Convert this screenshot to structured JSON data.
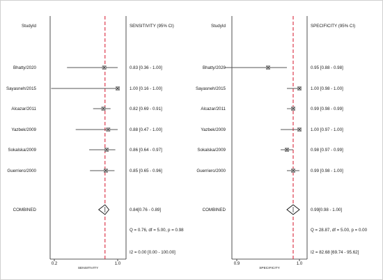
{
  "chart_data": [
    {
      "type": "forest",
      "study_header": "StudyId",
      "stat_header": "SENSITIVITY (95% CI)",
      "xlabel": "SENSITIVITY",
      "xlim": [
        0.2,
        1.0
      ],
      "xticks": [
        "0.2",
        "1.0"
      ],
      "studies": [
        {
          "name": "Bhatty/2020",
          "est": 0.83,
          "lo": 0.36,
          "hi": 1.0,
          "label": "0.83 [0.36 - 1.00]"
        },
        {
          "name": "Sayasneh/2015",
          "est": 1.0,
          "lo": 0.16,
          "hi": 1.0,
          "label": "1.00 [0.16 - 1.00]"
        },
        {
          "name": "Alcazar/2011",
          "est": 0.82,
          "lo": 0.69,
          "hi": 0.91,
          "label": "0.82 [0.69 - 0.91]"
        },
        {
          "name": "Yazbek/2009",
          "est": 0.88,
          "lo": 0.47,
          "hi": 1.0,
          "label": "0.88 [0.47 - 1.00]"
        },
        {
          "name": "Sokalska/2009",
          "est": 0.86,
          "lo": 0.64,
          "hi": 0.97,
          "label": "0.86 [0.64 - 0.97]"
        },
        {
          "name": "Guerriero/2000",
          "est": 0.85,
          "lo": 0.65,
          "hi": 0.96,
          "label": "0.85 [0.65 - 0.96]"
        }
      ],
      "combined": {
        "name": "COMBINED",
        "est": 0.84,
        "lo": 0.76,
        "hi": 0.89,
        "label": "0.84[0.76 - 0.89]"
      },
      "ref_line": 0.84,
      "heterogeneity": "Q =  0.76, df = 5.00, p =  0.98",
      "i2": "I2 = 0.00 [0.00 - 100.00]"
    },
    {
      "type": "forest",
      "study_header": "StudyId",
      "stat_header": "SPECIFICITY (95% CI)",
      "xlabel": "SPECIFICITY",
      "xlim": [
        0.9,
        1.0
      ],
      "xticks": [
        "0.9",
        "1.0"
      ],
      "studies": [
        {
          "name": "Bhatty/2020",
          "est": 0.95,
          "lo": 0.88,
          "hi": 0.98,
          "label": "0.95 [0.88 - 0.98]"
        },
        {
          "name": "Sayasneh/2015",
          "est": 1.0,
          "lo": 0.98,
          "hi": 1.0,
          "label": "1.00 [0.98 - 1.00]"
        },
        {
          "name": "Alcazar/2011",
          "est": 0.99,
          "lo": 0.98,
          "hi": 0.99,
          "label": "0.99 [0.98 - 0.99]"
        },
        {
          "name": "Yazbek/2009",
          "est": 1.0,
          "lo": 0.97,
          "hi": 1.0,
          "label": "1.00 [0.97 - 1.00]"
        },
        {
          "name": "Sokalska/2009",
          "est": 0.98,
          "lo": 0.97,
          "hi": 0.99,
          "label": "0.98 [0.97 - 0.99]"
        },
        {
          "name": "Guerriero/2000",
          "est": 0.99,
          "lo": 0.98,
          "hi": 1.0,
          "label": "0.99 [0.98 - 1.00]"
        }
      ],
      "combined": {
        "name": "COMBINED",
        "est": 0.99,
        "lo": 0.98,
        "hi": 1.0,
        "label": "0.99[0.98 - 1.00]"
      },
      "ref_line": 0.99,
      "heterogeneity": "Q = 28.87, df = 5.00, p =  0.00",
      "i2": "I2 = 82.68 [69.74 - 95.62]"
    }
  ],
  "colors": {
    "ref_line": "#d9263b",
    "whisker": "#555555",
    "text": "#1a1a1a",
    "frame": "#222222"
  }
}
